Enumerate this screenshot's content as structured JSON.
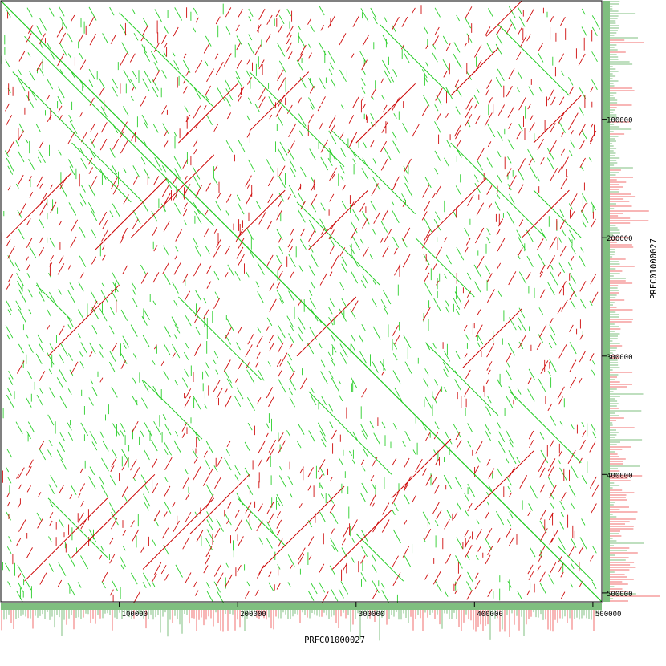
{
  "chart_data": {
    "type": "dotplot",
    "xlabel": "PRFC01000027",
    "ylabel": "PRFC01000027",
    "xlim": [
      0,
      507500
    ],
    "ylim": [
      0,
      507500
    ],
    "x_ticks": [
      {
        "value": 100000,
        "label": "100000"
      },
      {
        "value": 200000,
        "label": "200000"
      },
      {
        "value": 300000,
        "label": "300000"
      },
      {
        "value": 400000,
        "label": "400000"
      },
      {
        "value": 500000,
        "label": "500000"
      }
    ],
    "y_ticks": [
      {
        "value": 100000,
        "label": "100000"
      },
      {
        "value": 200000,
        "label": "200000"
      },
      {
        "value": 300000,
        "label": "300000"
      },
      {
        "value": 400000,
        "label": "400000"
      },
      {
        "value": 500000,
        "label": "500000"
      }
    ],
    "main_diagonal": {
      "start": [
        0,
        0
      ],
      "end": [
        507500,
        507500
      ]
    },
    "series": [
      {
        "orientation": "forward",
        "color": "#22cc22",
        "segments": [
          [
            0,
            0,
            507500,
            507500
          ],
          [
            10000,
            60000,
            120000,
            170000
          ],
          [
            20000,
            30000,
            180000,
            190000
          ],
          [
            30000,
            240000,
            60000,
            270000
          ],
          [
            40000,
            420000,
            90000,
            470000
          ],
          [
            60000,
            120000,
            110000,
            170000
          ],
          [
            100000,
            10000,
            180000,
            90000
          ],
          [
            120000,
            320000,
            170000,
            370000
          ],
          [
            150000,
            250000,
            220000,
            320000
          ],
          [
            200000,
            420000,
            240000,
            460000
          ],
          [
            210000,
            60000,
            290000,
            140000
          ],
          [
            250000,
            170000,
            320000,
            240000
          ],
          [
            260000,
            330000,
            330000,
            400000
          ],
          [
            280000,
            110000,
            350000,
            180000
          ],
          [
            300000,
            450000,
            340000,
            490000
          ],
          [
            320000,
            20000,
            380000,
            80000
          ],
          [
            350000,
            200000,
            400000,
            250000
          ],
          [
            360000,
            290000,
            420000,
            350000
          ],
          [
            380000,
            120000,
            460000,
            200000
          ],
          [
            400000,
            400000,
            460000,
            460000
          ],
          [
            420000,
            20000,
            480000,
            80000
          ],
          [
            430000,
            330000,
            490000,
            390000
          ],
          [
            450000,
            160000,
            490000,
            200000
          ],
          [
            470000,
            460000,
            500000,
            490000
          ]
        ]
      },
      {
        "orientation": "reverse",
        "color": "#cc0000",
        "segments": [
          [
            5000,
            200000,
            60000,
            145000
          ],
          [
            20000,
            490000,
            90000,
            420000
          ],
          [
            40000,
            300000,
            100000,
            240000
          ],
          [
            60000,
            470000,
            130000,
            400000
          ],
          [
            80000,
            210000,
            140000,
            150000
          ],
          [
            110000,
            200000,
            180000,
            130000
          ],
          [
            120000,
            480000,
            180000,
            420000
          ],
          [
            150000,
            120000,
            200000,
            70000
          ],
          [
            160000,
            450000,
            210000,
            400000
          ],
          [
            200000,
            200000,
            240000,
            160000
          ],
          [
            210000,
            110000,
            260000,
            60000
          ],
          [
            220000,
            480000,
            290000,
            410000
          ],
          [
            250000,
            300000,
            300000,
            250000
          ],
          [
            260000,
            210000,
            310000,
            160000
          ],
          [
            280000,
            480000,
            330000,
            430000
          ],
          [
            300000,
            120000,
            350000,
            70000
          ],
          [
            330000,
            420000,
            380000,
            370000
          ],
          [
            360000,
            200000,
            410000,
            150000
          ],
          [
            380000,
            80000,
            420000,
            40000
          ],
          [
            390000,
            310000,
            440000,
            260000
          ],
          [
            400000,
            430000,
            450000,
            380000
          ],
          [
            410000,
            30000,
            440000,
            0
          ],
          [
            440000,
            200000,
            480000,
            160000
          ],
          [
            450000,
            120000,
            490000,
            80000
          ]
        ]
      }
    ],
    "side_tracks": {
      "position": [
        "right",
        "bottom"
      ],
      "colors": {
        "positive": "#7fbf7f",
        "negative": "#f26d6d"
      }
    }
  }
}
